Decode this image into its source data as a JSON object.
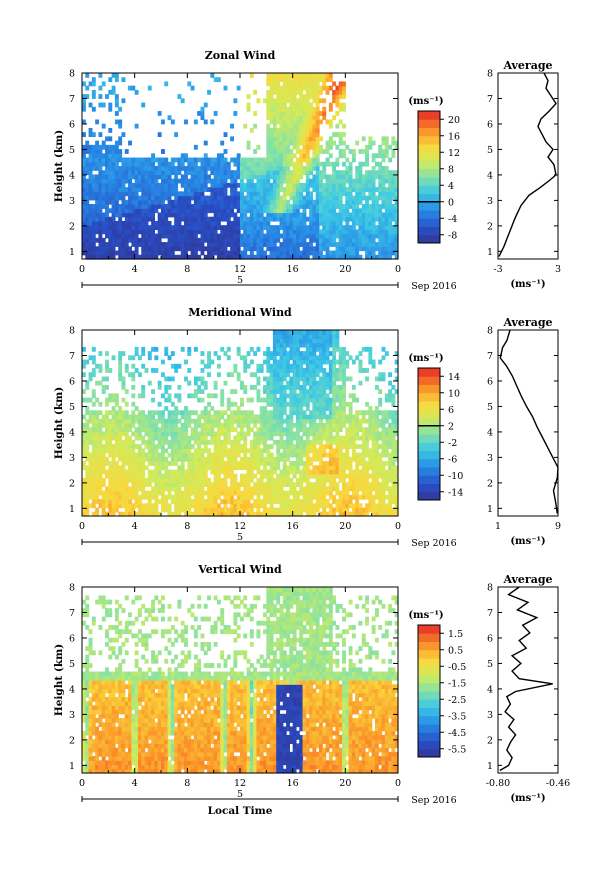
{
  "date_label": "Sep 2016",
  "day_label": "5",
  "xlabel": "Local Time",
  "chart_data": [
    {
      "type": "heatmap",
      "title": "Zonal Wind",
      "ylabel": "Height (km)",
      "xlim": [
        0,
        24
      ],
      "ylim": [
        0.7,
        8
      ],
      "xticks": [
        "0",
        "4",
        "8",
        "12",
        "16",
        "20",
        "0"
      ],
      "yticks": [
        "1",
        "2",
        "3",
        "4",
        "5",
        "6",
        "7",
        "8"
      ],
      "colorbar": {
        "unit": "(ms⁻¹)",
        "range": [
          -10,
          22
        ],
        "ticks": [
          "20",
          "16",
          "12",
          "8",
          "4",
          "0",
          "-4",
          "-8"
        ],
        "marked": "0"
      },
      "average": {
        "title": "Average",
        "unit": "(ms⁻¹)",
        "xlim": [
          -3,
          3
        ],
        "xticks": [
          "-3",
          "3"
        ],
        "profile": [
          [
            -2.9,
            0.8
          ],
          [
            -2.4,
            1.2
          ],
          [
            -1.9,
            1.7
          ],
          [
            -1.3,
            2.3
          ],
          [
            -0.7,
            2.8
          ],
          [
            0.1,
            3.2
          ],
          [
            1.2,
            3.5
          ],
          [
            2.2,
            3.8
          ],
          [
            2.8,
            4.0
          ],
          [
            2.6,
            4.4
          ],
          [
            2.0,
            4.7
          ],
          [
            2.5,
            5.0
          ],
          [
            1.8,
            5.3
          ],
          [
            1.4,
            5.6
          ],
          [
            1.0,
            5.9
          ],
          [
            1.3,
            6.2
          ],
          [
            2.1,
            6.5
          ],
          [
            2.8,
            6.8
          ],
          [
            2.3,
            7.1
          ],
          [
            1.8,
            7.4
          ],
          [
            2.0,
            7.7
          ],
          [
            1.6,
            8.0
          ]
        ]
      }
    },
    {
      "type": "heatmap",
      "title": "Meridional Wind",
      "ylabel": "Height (km)",
      "xlim": [
        0,
        24
      ],
      "ylim": [
        0.7,
        8
      ],
      "xticks": [
        "0",
        "4",
        "8",
        "12",
        "16",
        "20",
        "0"
      ],
      "yticks": [
        "1",
        "2",
        "3",
        "4",
        "5",
        "6",
        "7",
        "8"
      ],
      "colorbar": {
        "unit": "(ms⁻¹)",
        "range": [
          -16,
          16
        ],
        "ticks": [
          "14",
          "10",
          "6",
          "2",
          "-2",
          "-6",
          "-10",
          "-14"
        ],
        "marked": "2"
      },
      "average": {
        "title": "Average",
        "unit": "(ms⁻¹)",
        "xlim": [
          1,
          9
        ],
        "xticks": [
          "1",
          "9"
        ],
        "profile": [
          [
            8.9,
            0.8
          ],
          [
            8.7,
            1.2
          ],
          [
            8.4,
            1.7
          ],
          [
            8.9,
            2.2
          ],
          [
            9.0,
            2.6
          ],
          [
            8.3,
            3.0
          ],
          [
            7.6,
            3.4
          ],
          [
            6.9,
            3.8
          ],
          [
            6.2,
            4.2
          ],
          [
            5.6,
            4.6
          ],
          [
            4.8,
            5.0
          ],
          [
            4.1,
            5.4
          ],
          [
            3.5,
            5.8
          ],
          [
            2.9,
            6.2
          ],
          [
            2.1,
            6.6
          ],
          [
            1.3,
            6.9
          ],
          [
            1.6,
            7.3
          ],
          [
            2.2,
            7.6
          ],
          [
            2.6,
            8.0
          ]
        ]
      }
    },
    {
      "type": "heatmap",
      "title": "Vertical Wind",
      "ylabel": "Height (km)",
      "xlim": [
        0,
        24
      ],
      "ylim": [
        0.7,
        8
      ],
      "xticks": [
        "0",
        "4",
        "8",
        "12",
        "16",
        "20",
        "0"
      ],
      "yticks": [
        "1",
        "2",
        "3",
        "4",
        "5",
        "6",
        "7",
        "8"
      ],
      "colorbar": {
        "unit": "(ms⁻¹)",
        "range": [
          -6.0,
          2.0
        ],
        "ticks": [
          "1.5",
          "0.5",
          "-0.5",
          "-1.5",
          "-2.5",
          "-3.5",
          "-4.5",
          "-5.5"
        ]
      },
      "average": {
        "title": "Average",
        "unit": "(ms⁻¹)",
        "xlim": [
          -0.8,
          -0.46
        ],
        "xticks": [
          "-0.80",
          "-0.46"
        ],
        "profile": [
          [
            -0.79,
            0.8
          ],
          [
            -0.74,
            1.0
          ],
          [
            -0.72,
            1.3
          ],
          [
            -0.75,
            1.6
          ],
          [
            -0.73,
            1.9
          ],
          [
            -0.7,
            2.2
          ],
          [
            -0.74,
            2.5
          ],
          [
            -0.71,
            2.8
          ],
          [
            -0.76,
            3.1
          ],
          [
            -0.73,
            3.4
          ],
          [
            -0.75,
            3.7
          ],
          [
            -0.7,
            3.9
          ],
          [
            -0.49,
            4.2
          ],
          [
            -0.68,
            4.4
          ],
          [
            -0.72,
            4.7
          ],
          [
            -0.67,
            5.0
          ],
          [
            -0.72,
            5.3
          ],
          [
            -0.64,
            5.6
          ],
          [
            -0.68,
            5.9
          ],
          [
            -0.62,
            6.2
          ],
          [
            -0.66,
            6.5
          ],
          [
            -0.58,
            6.8
          ],
          [
            -0.69,
            7.1
          ],
          [
            -0.63,
            7.4
          ],
          [
            -0.74,
            7.7
          ],
          [
            -0.68,
            8.0
          ]
        ]
      }
    }
  ]
}
